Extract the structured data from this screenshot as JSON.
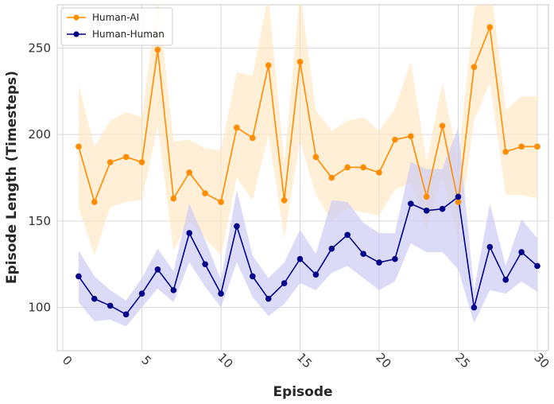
{
  "chart_data": {
    "type": "line",
    "title": "",
    "xlabel": "Episode",
    "ylabel": "Episode Length (Timesteps)",
    "xlim": [
      0,
      30
    ],
    "ylim": [
      75,
      275
    ],
    "x_ticks": [
      "0",
      "5",
      "10",
      "15",
      "20",
      "25",
      "30"
    ],
    "y_ticks": [
      "100",
      "150",
      "200",
      "250"
    ],
    "grid": true,
    "legend_position": "top-left",
    "x": [
      1,
      2,
      3,
      4,
      5,
      6,
      7,
      8,
      9,
      10,
      11,
      12,
      13,
      14,
      15,
      16,
      17,
      18,
      19,
      20,
      21,
      22,
      23,
      24,
      25,
      26,
      27,
      28,
      29,
      30
    ],
    "series": [
      {
        "name": "Human-AI",
        "color": "#ff8c00",
        "band_color": "#ffe4bd",
        "values": [
          193,
          161,
          184,
          187,
          184,
          249,
          163,
          178,
          166,
          161,
          204,
          198,
          240,
          162,
          242,
          187,
          175,
          181,
          181,
          178,
          197,
          199,
          164,
          205,
          161,
          239,
          262,
          190,
          193,
          193
        ],
        "lower": [
          158,
          130,
          158,
          161,
          162,
          205,
          133,
          150,
          140,
          130,
          175,
          162,
          200,
          140,
          196,
          165,
          150,
          157,
          155,
          153,
          168,
          172,
          145,
          175,
          140,
          208,
          230,
          165,
          165,
          163
        ],
        "upper": [
          229,
          193,
          208,
          213,
          210,
          280,
          196,
          197,
          192,
          191,
          236,
          234,
          281,
          183,
          283,
          214,
          202,
          208,
          210,
          202,
          215,
          242,
          184,
          230,
          185,
          272,
          290,
          214,
          222,
          222
        ]
      },
      {
        "name": "Human-Human",
        "color": "#00008b",
        "band_color": "#c8c8f5",
        "values": [
          118,
          105,
          101,
          96,
          108,
          122,
          110,
          143,
          125,
          108,
          147,
          118,
          105,
          114,
          128,
          119,
          134,
          142,
          131,
          126,
          128,
          160,
          156,
          157,
          164,
          100,
          135,
          116,
          132,
          124
        ],
        "lower": [
          103,
          92,
          93,
          89,
          100,
          111,
          103,
          126,
          112,
          100,
          126,
          106,
          95,
          102,
          114,
          110,
          120,
          124,
          117,
          110,
          115,
          137,
          132,
          132,
          122,
          91,
          110,
          108,
          115,
          109
        ],
        "upper": [
          133,
          118,
          110,
          104,
          117,
          134,
          121,
          160,
          139,
          116,
          168,
          130,
          117,
          126,
          145,
          131,
          162,
          161,
          149,
          143,
          143,
          184,
          180,
          180,
          204,
          110,
          160,
          124,
          151,
          140
        ]
      }
    ]
  }
}
